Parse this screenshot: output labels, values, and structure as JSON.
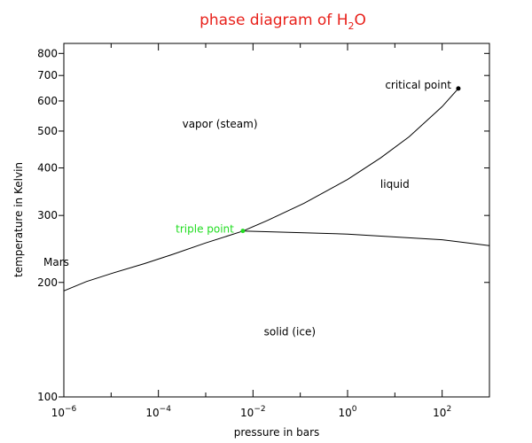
{
  "chart_data": {
    "type": "line",
    "title": "phase diagram of H",
    "title_subscript": "2",
    "title_suffix": "O",
    "xlabel": "pressure in bars",
    "ylabel": "temperature in Kelvin",
    "x_scale": "log",
    "y_scale": "log",
    "xlim": [
      1e-06,
      1000
    ],
    "ylim": [
      100,
      850
    ],
    "x_ticks": [
      {
        "value": 1e-06,
        "base": "10",
        "exp": "−6"
      },
      {
        "value": 0.0001,
        "base": "10",
        "exp": "−4"
      },
      {
        "value": 0.01,
        "base": "10",
        "exp": "−2"
      },
      {
        "value": 1,
        "base": "10",
        "exp": "0"
      },
      {
        "value": 100,
        "base": "10",
        "exp": "2"
      }
    ],
    "y_ticks": [
      100,
      200,
      300,
      400,
      500,
      600,
      700,
      800
    ],
    "series": [
      {
        "role": "vapor-solid boundary",
        "color": "#000000",
        "x": [
          1e-06,
          3e-06,
          1e-05,
          5e-05,
          0.0002,
          0.001,
          0.0061
        ],
        "y": [
          190,
          201,
          211,
          224,
          237,
          254,
          273
        ]
      },
      {
        "role": "vapor-liquid boundary",
        "color": "#000000",
        "x": [
          0.0061,
          0.02,
          0.12,
          1,
          5,
          20,
          100,
          220
        ],
        "y": [
          273,
          291,
          323,
          373,
          425,
          483,
          580,
          647
        ]
      },
      {
        "role": "solid-liquid boundary",
        "color": "#000000",
        "x": [
          0.0061,
          1,
          100,
          1000
        ],
        "y": [
          273,
          268,
          259,
          250
        ]
      }
    ],
    "points": [
      {
        "label": "triple point",
        "x": 0.0061,
        "y": 273.16,
        "color": "#22dd22"
      },
      {
        "label": "critical point",
        "x": 220,
        "y": 647,
        "color": "#000000"
      }
    ],
    "region_labels": [
      {
        "text": "vapor (steam)",
        "x": 0.002,
        "y": 510
      },
      {
        "text": "liquid",
        "x": 10,
        "y": 355
      },
      {
        "text": "solid (ice)",
        "x": 0.06,
        "y": 145
      }
    ],
    "annotations": [
      {
        "text": "Mars",
        "color": "#e8211b"
      }
    ],
    "grid": false
  }
}
